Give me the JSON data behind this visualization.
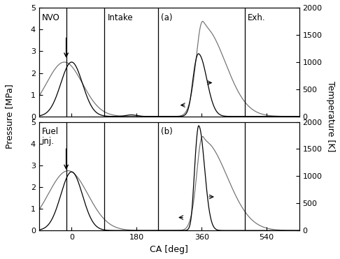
{
  "xlim": [
    -90,
    630
  ],
  "ylim_pressure": [
    0,
    5
  ],
  "ylim_temp": [
    0,
    2000
  ],
  "xtick_vals": [
    0,
    180,
    360,
    540
  ],
  "xtick_labels": [
    "0",
    "180",
    "360",
    "540"
  ],
  "yticks_pressure": [
    0,
    1,
    2,
    3,
    4,
    5
  ],
  "yticks_temp": [
    0,
    500,
    1000,
    1500,
    2000
  ],
  "xlabel": "CA [deg]",
  "ylabel_left": "Pressure [MPa]",
  "ylabel_right": "Temperature [K]",
  "label_a": "(a)",
  "label_b": "(b)",
  "label_nvo": "NVO",
  "label_intake": "Intake",
  "label_exh": "Exh.",
  "label_fuel": "Fuel\ninj.",
  "vline1": -15,
  "vline2": 90,
  "vline3": 240,
  "vline4": 480,
  "background_color": "#ffffff",
  "line_color_pressure": "#000000",
  "line_color_temp": "#707070"
}
